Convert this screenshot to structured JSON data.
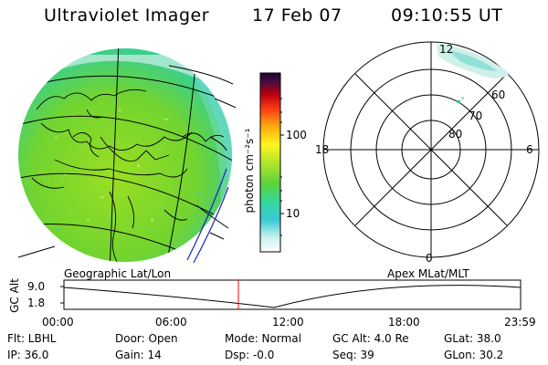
{
  "header": {
    "title": "Ultraviolet Imager",
    "date": "17 Feb 07",
    "time": "09:10:55 UT"
  },
  "colorbar": {
    "unit_label": "photon cm⁻²s⁻¹",
    "ticks": [
      "100",
      "10"
    ]
  },
  "polar": {
    "mlt_labels": {
      "top": "12",
      "bottom": "0",
      "left": "18",
      "right": "6"
    },
    "lat_labels": [
      "60",
      "70",
      "80"
    ]
  },
  "timeline": {
    "left_title": "Geographic Lat/Lon",
    "right_title": "Apex MLat/MLT",
    "y_axis_label": "GC Alt",
    "y_ticks": [
      "9.0",
      "1.8"
    ],
    "x_ticks": [
      "00:00",
      "06:00",
      "12:00",
      "18:00",
      "23:59"
    ],
    "current_time_fraction": 0.382
  },
  "status": {
    "flt": "Flt: LBHL",
    "ip": "IP: 36.0",
    "door": "Door: Open",
    "gain": "Gain: 14",
    "mode": "Mode: Normal",
    "dsp": "Dsp:  -0.0",
    "gcalt": "GC Alt: 4.0 Re",
    "seq": "Seq: 39",
    "glat": "GLat:  38.0",
    "glon": "GLon:  30.2"
  },
  "colors": {
    "globe_fill": "#7ed629",
    "globe_edge": "#3fcfc0",
    "aurora_patch": "#c9f0ec",
    "marker_line": "#ff0000",
    "track_line": "#000000"
  }
}
